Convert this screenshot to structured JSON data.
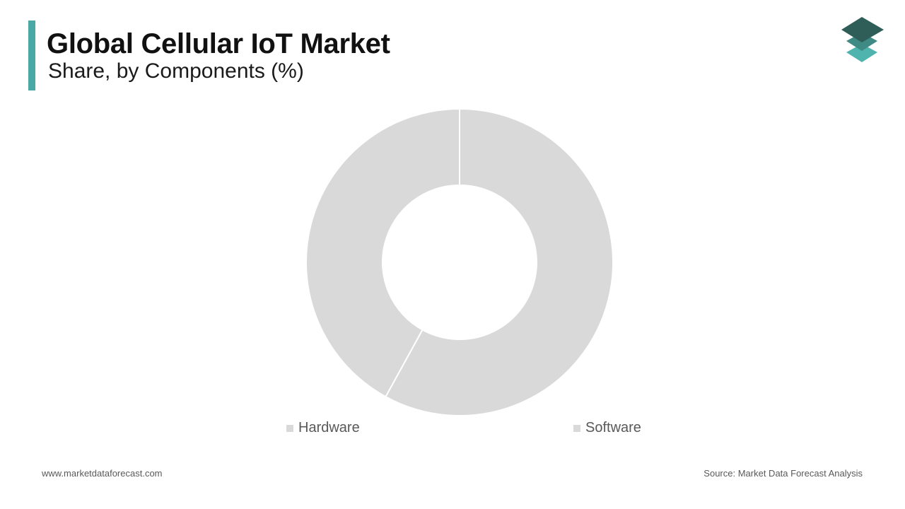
{
  "header": {
    "title": "Global Cellular IoT Market",
    "subtitle": "Share, by Components (%)"
  },
  "colors": {
    "accent": "#4aa8a6",
    "slice": "#d9d9d9",
    "slice_border": "#ffffff",
    "legend_swatch": "#d9d9d9",
    "logo_top": "#2f5e58",
    "logo_mid": "#3f8a84",
    "logo_bottom": "#4fb3ae"
  },
  "logo": {
    "icon": "stacked-layers-icon"
  },
  "chart_data": {
    "type": "pie",
    "donut": true,
    "categories": [
      "Software",
      "Hardware"
    ],
    "values": [
      58,
      42
    ],
    "legend": [
      "Hardware",
      "Software"
    ],
    "legend_position": "bottom"
  },
  "footer": {
    "website": "www.marketdataforecast.com",
    "source": "Source: Market Data Forecast Analysis"
  }
}
